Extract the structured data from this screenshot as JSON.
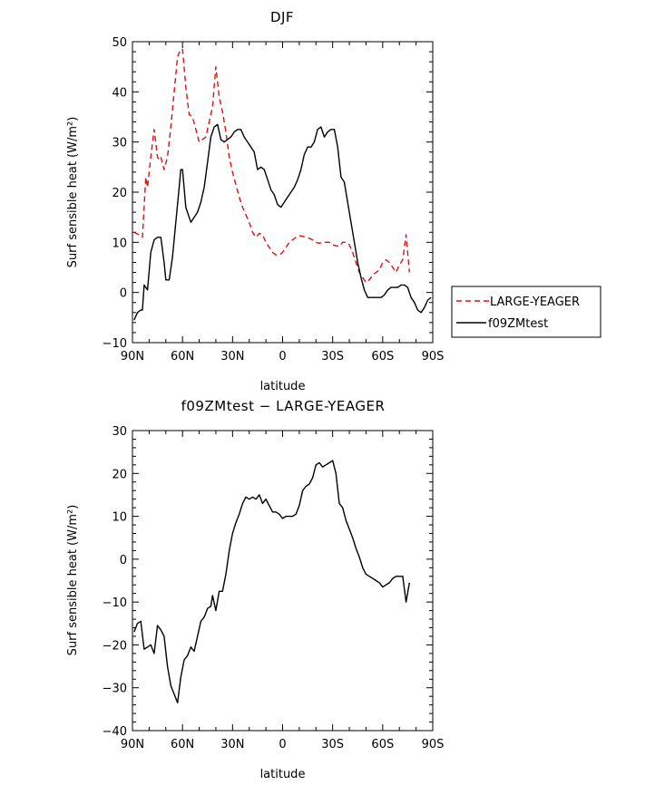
{
  "chart_data": [
    {
      "type": "line",
      "title": "DJF",
      "xlabel": "latitude",
      "ylabel": "Surf sensible heat (W/m²)",
      "xlim": [
        90,
        -90
      ],
      "ylim": [
        -10,
        50
      ],
      "x_ticks": [
        90,
        60,
        30,
        0,
        -30,
        -60,
        -90
      ],
      "x_tick_labels": [
        "90N",
        "60N",
        "30N",
        "0",
        "30S",
        "60S",
        "90S"
      ],
      "y_ticks": [
        -10,
        0,
        10,
        20,
        30,
        40,
        50
      ],
      "y_tick_labels": [
        "−10",
        "0",
        "10",
        "20",
        "30",
        "40",
        "50"
      ],
      "legend": {
        "placement": "right",
        "entries": [
          "LARGE-YEAGER",
          "f09ZMtest"
        ]
      },
      "series": [
        {
          "name": "LARGE-YEAGER",
          "color": "#dd1111",
          "dash": "dashed",
          "points": [
            [
              89,
              12
            ],
            [
              86,
              11.5
            ],
            [
              84,
              11
            ],
            [
              82,
              23
            ],
            [
              81,
              21
            ],
            [
              79,
              27
            ],
            [
              77,
              32.5
            ],
            [
              75,
              27
            ],
            [
              74,
              26.5
            ],
            [
              73,
              27
            ],
            [
              71,
              24.5
            ],
            [
              69,
              27
            ],
            [
              67,
              33
            ],
            [
              65,
              40
            ],
            [
              63,
              47
            ],
            [
              61,
              48.5
            ],
            [
              60,
              48.5
            ],
            [
              58,
              41
            ],
            [
              56,
              35.5
            ],
            [
              54,
              35
            ],
            [
              52,
              32.5
            ],
            [
              50,
              30
            ],
            [
              48,
              30.5
            ],
            [
              46,
              31
            ],
            [
              44,
              34
            ],
            [
              42,
              37
            ],
            [
              40,
              45
            ],
            [
              38,
              39
            ],
            [
              36,
              36
            ],
            [
              34,
              32
            ],
            [
              32,
              27
            ],
            [
              30,
              24
            ],
            [
              28,
              21.5
            ],
            [
              26,
              19
            ],
            [
              24,
              17
            ],
            [
              22,
              15.5
            ],
            [
              20,
              14
            ],
            [
              18,
              12
            ],
            [
              16,
              11
            ],
            [
              14,
              11.8
            ],
            [
              12,
              11.5
            ],
            [
              10,
              10
            ],
            [
              8,
              9
            ],
            [
              6,
              8
            ],
            [
              4,
              7.5
            ],
            [
              2,
              7.5
            ],
            [
              0,
              8
            ],
            [
              -2,
              9
            ],
            [
              -4,
              10
            ],
            [
              -6,
              10.5
            ],
            [
              -8,
              11
            ],
            [
              -10,
              11.3
            ],
            [
              -12,
              11.2
            ],
            [
              -14,
              11
            ],
            [
              -16,
              10.8
            ],
            [
              -18,
              10.5
            ],
            [
              -20,
              10
            ],
            [
              -22,
              9.8
            ],
            [
              -24,
              10
            ],
            [
              -26,
              10
            ],
            [
              -28,
              10
            ],
            [
              -30,
              9.5
            ],
            [
              -32,
              9.3
            ],
            [
              -34,
              9.2
            ],
            [
              -36,
              10
            ],
            [
              -38,
              10
            ],
            [
              -40,
              9.5
            ],
            [
              -42,
              8
            ],
            [
              -44,
              6
            ],
            [
              -46,
              4
            ],
            [
              -48,
              3
            ],
            [
              -50,
              2
            ],
            [
              -52,
              2.5
            ],
            [
              -54,
              3.5
            ],
            [
              -56,
              4
            ],
            [
              -58,
              4.5
            ],
            [
              -60,
              6
            ],
            [
              -62,
              6.5
            ],
            [
              -64,
              6
            ],
            [
              -66,
              5
            ],
            [
              -68,
              4
            ],
            [
              -70,
              5.5
            ],
            [
              -72,
              6.5
            ],
            [
              -74,
              11.5
            ],
            [
              -76,
              4
            ]
          ]
        },
        {
          "name": "f09ZMtest",
          "color": "#000000",
          "dash": "solid",
          "points": [
            [
              89,
              -5.5
            ],
            [
              87,
              -4
            ],
            [
              85,
              -3.5
            ],
            [
              84,
              -3.5
            ],
            [
              83,
              1.5
            ],
            [
              81,
              0.5
            ],
            [
              79,
              8
            ],
            [
              77,
              10.5
            ],
            [
              75,
              11
            ],
            [
              73,
              11
            ],
            [
              71,
              6
            ],
            [
              70,
              2.5
            ],
            [
              68,
              2.5
            ],
            [
              66,
              7
            ],
            [
              64,
              14
            ],
            [
              62,
              21
            ],
            [
              61,
              24.5
            ],
            [
              60,
              24.5
            ],
            [
              58,
              17
            ],
            [
              56,
              15
            ],
            [
              55,
              14
            ],
            [
              53,
              15
            ],
            [
              51,
              16
            ],
            [
              49,
              18
            ],
            [
              47,
              21
            ],
            [
              45,
              26
            ],
            [
              43,
              31
            ],
            [
              41,
              33
            ],
            [
              39,
              33.5
            ],
            [
              37,
              30.5
            ],
            [
              35,
              30
            ],
            [
              33,
              30.5
            ],
            [
              31,
              31
            ],
            [
              29,
              32
            ],
            [
              27,
              32.5
            ],
            [
              25,
              32.5
            ],
            [
              23,
              31
            ],
            [
              21,
              30
            ],
            [
              19,
              29
            ],
            [
              17,
              28
            ],
            [
              15,
              24.5
            ],
            [
              13,
              25
            ],
            [
              11,
              24.5
            ],
            [
              9,
              22.5
            ],
            [
              7,
              20.5
            ],
            [
              5,
              19.5
            ],
            [
              3,
              17.5
            ],
            [
              1,
              17
            ],
            [
              -1,
              18
            ],
            [
              -3,
              19
            ],
            [
              -5,
              20
            ],
            [
              -7,
              21
            ],
            [
              -9,
              22.5
            ],
            [
              -11,
              24.5
            ],
            [
              -13,
              27.5
            ],
            [
              -15,
              29
            ],
            [
              -17,
              29
            ],
            [
              -19,
              30
            ],
            [
              -21,
              32.5
            ],
            [
              -23,
              33
            ],
            [
              -25,
              31
            ],
            [
              -27,
              32
            ],
            [
              -29,
              32.5
            ],
            [
              -31,
              32.5
            ],
            [
              -33,
              29
            ],
            [
              -35,
              23
            ],
            [
              -37,
              22
            ],
            [
              -39,
              18
            ],
            [
              -41,
              14
            ],
            [
              -43,
              10
            ],
            [
              -45,
              6
            ],
            [
              -47,
              3
            ],
            [
              -49,
              0.5
            ],
            [
              -51,
              -1
            ],
            [
              -53,
              -1
            ],
            [
              -55,
              -1
            ],
            [
              -57,
              -1
            ],
            [
              -59,
              -1
            ],
            [
              -61,
              -0.5
            ],
            [
              -63,
              0.5
            ],
            [
              -65,
              1
            ],
            [
              -67,
              1
            ],
            [
              -69,
              1
            ],
            [
              -71,
              1.5
            ],
            [
              -73,
              1.5
            ],
            [
              -75,
              1
            ],
            [
              -77,
              -1
            ],
            [
              -79,
              -2
            ],
            [
              -81,
              -3.5
            ],
            [
              -83,
              -4
            ],
            [
              -85,
              -3
            ],
            [
              -87,
              -1.5
            ],
            [
              -89,
              -1
            ]
          ]
        }
      ]
    },
    {
      "type": "line",
      "title": "f09ZMtest − LARGE-YEAGER",
      "xlabel": "latitude",
      "ylabel": "Surf sensible heat (W/m²)",
      "xlim": [
        90,
        -90
      ],
      "ylim": [
        -40,
        30
      ],
      "x_ticks": [
        90,
        60,
        30,
        0,
        -30,
        -60,
        -90
      ],
      "x_tick_labels": [
        "90N",
        "60N",
        "30N",
        "0",
        "30S",
        "60S",
        "90S"
      ],
      "y_ticks": [
        -40,
        -30,
        -20,
        -10,
        0,
        10,
        20,
        30
      ],
      "y_tick_labels": [
        "−40",
        "−30",
        "−20",
        "−10",
        "0",
        "10",
        "20",
        "30"
      ],
      "series": [
        {
          "color": "#000000",
          "dash": "solid",
          "points": [
            [
              89,
              -17
            ],
            [
              87,
              -15
            ],
            [
              85,
              -14.5
            ],
            [
              83,
              -21
            ],
            [
              81,
              -20.5
            ],
            [
              79,
              -20
            ],
            [
              77,
              -22
            ],
            [
              75,
              -15.5
            ],
            [
              73,
              -16.5
            ],
            [
              71,
              -18
            ],
            [
              69,
              -25
            ],
            [
              67,
              -29.5
            ],
            [
              65,
              -31.5
            ],
            [
              63,
              -33.5
            ],
            [
              61,
              -27.5
            ],
            [
              59,
              -23.5
            ],
            [
              57,
              -22.5
            ],
            [
              55,
              -20.5
            ],
            [
              53,
              -21.5
            ],
            [
              51,
              -18
            ],
            [
              49,
              -14.5
            ],
            [
              47,
              -13.5
            ],
            [
              45,
              -11.5
            ],
            [
              43,
              -11
            ],
            [
              42,
              -8.5
            ],
            [
              40,
              -12
            ],
            [
              38,
              -7.5
            ],
            [
              36,
              -7.5
            ],
            [
              34,
              -3.5
            ],
            [
              32,
              2
            ],
            [
              30,
              6
            ],
            [
              28,
              8.5
            ],
            [
              26,
              10.5
            ],
            [
              24,
              13
            ],
            [
              22,
              14.5
            ],
            [
              20,
              14
            ],
            [
              18,
              14.5
            ],
            [
              16,
              14
            ],
            [
              14,
              15
            ],
            [
              12,
              13
            ],
            [
              10,
              14
            ],
            [
              8,
              12.5
            ],
            [
              6,
              11
            ],
            [
              4,
              11
            ],
            [
              2,
              10.5
            ],
            [
              0,
              9.5
            ],
            [
              -2,
              10
            ],
            [
              -4,
              10
            ],
            [
              -6,
              10
            ],
            [
              -8,
              10.5
            ],
            [
              -10,
              12.5
            ],
            [
              -12,
              16
            ],
            [
              -14,
              17
            ],
            [
              -16,
              17.5
            ],
            [
              -18,
              19
            ],
            [
              -20,
              22
            ],
            [
              -22,
              22.5
            ],
            [
              -24,
              21.5
            ],
            [
              -26,
              22
            ],
            [
              -28,
              22.5
            ],
            [
              -30,
              23
            ],
            [
              -32,
              20
            ],
            [
              -34,
              13
            ],
            [
              -36,
              12
            ],
            [
              -38,
              9
            ],
            [
              -40,
              7
            ],
            [
              -42,
              5
            ],
            [
              -44,
              2.5
            ],
            [
              -46,
              0.5
            ],
            [
              -48,
              -2
            ],
            [
              -50,
              -3.5
            ],
            [
              -52,
              -4
            ],
            [
              -54,
              -4.5
            ],
            [
              -56,
              -5
            ],
            [
              -58,
              -5.5
            ],
            [
              -60,
              -6.5
            ],
            [
              -62,
              -6
            ],
            [
              -64,
              -5.5
            ],
            [
              -66,
              -4.5
            ],
            [
              -68,
              -4
            ],
            [
              -70,
              -4
            ],
            [
              -72,
              -4
            ],
            [
              -74,
              -10
            ],
            [
              -76,
              -5.5
            ]
          ]
        }
      ]
    }
  ]
}
